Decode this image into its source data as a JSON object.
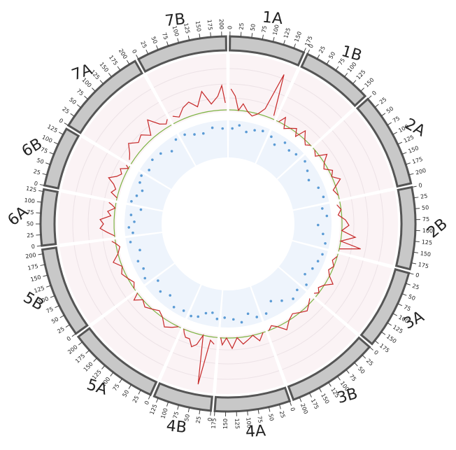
{
  "chart_data": {
    "type": "circos",
    "ideogram_color": "#c8c8c8",
    "peak_color": "#c62828",
    "threshold_color": "#7cb342",
    "dot_color": "#5b9bd5",
    "peak_ylim": [
      0,
      10
    ],
    "dot_ylim": [
      0,
      10
    ],
    "threshold": 2,
    "chromosomes": [
      {
        "name": "1A",
        "length": 175,
        "ticks": [
          0,
          25,
          50,
          75,
          100,
          125,
          150,
          175
        ],
        "peak_x": [
          5,
          20,
          35,
          50,
          70,
          90,
          110,
          130,
          150,
          168
        ],
        "peak_values": [
          5,
          4,
          2,
          3,
          2,
          1.5,
          2,
          3,
          8.5,
          2.5
        ],
        "dot_x": [
          15,
          45,
          80,
          115,
          150
        ],
        "dot_values": [
          8,
          9,
          7.5,
          8.5,
          9
        ]
      },
      {
        "name": "1B",
        "length": 165,
        "ticks": [
          0,
          25,
          50,
          75,
          100,
          125,
          150
        ],
        "peak_x": [
          10,
          25,
          40,
          60,
          80,
          95,
          110,
          130,
          145,
          160
        ],
        "peak_values": [
          2,
          3,
          1.5,
          2,
          2.5,
          1.5,
          3,
          2,
          1.5,
          2
        ],
        "dot_x": [
          10,
          40,
          75,
          110,
          145
        ],
        "dot_values": [
          8.5,
          7,
          9,
          8,
          8.5
        ]
      },
      {
        "name": "2A",
        "length": 220,
        "ticks": [
          0,
          25,
          50,
          75,
          100,
          125,
          150,
          175,
          200
        ],
        "peak_x": [
          10,
          30,
          50,
          70,
          90,
          110,
          130,
          150,
          180,
          205
        ],
        "peak_values": [
          2,
          1.5,
          3,
          2,
          1.5,
          2.5,
          2,
          3,
          1.5,
          2
        ],
        "dot_x": [
          20,
          60,
          100,
          150,
          195
        ],
        "dot_values": [
          9,
          8,
          7,
          8.5,
          9
        ]
      },
      {
        "name": "2B",
        "length": 190,
        "ticks": [
          0,
          25,
          50,
          75,
          100,
          125,
          150,
          175
        ],
        "peak_x": [
          10,
          30,
          50,
          70,
          90,
          110,
          130,
          150,
          165,
          180
        ],
        "peak_values": [
          1.5,
          2,
          1.5,
          2.5,
          3,
          2,
          4,
          2,
          5,
          2
        ],
        "dot_x": [
          15,
          50,
          90,
          130,
          170
        ],
        "dot_values": [
          8,
          9,
          6.5,
          8,
          9
        ]
      },
      {
        "name": "3A",
        "length": 185,
        "ticks": [
          0,
          25,
          50,
          75,
          100,
          125,
          150,
          175
        ],
        "peak_x": [
          10,
          30,
          50,
          70,
          90,
          110,
          130,
          150,
          165,
          178
        ],
        "peak_values": [
          2,
          1.5,
          2,
          1.5,
          2,
          3,
          2,
          1.5,
          2,
          1.5
        ],
        "dot_x": [
          20,
          55,
          95,
          135,
          170
        ],
        "dot_values": [
          9,
          8.5,
          8,
          7,
          9
        ]
      },
      {
        "name": "3B",
        "length": 215,
        "ticks": [
          0,
          25,
          50,
          75,
          100,
          125,
          150,
          175,
          200
        ],
        "peak_x": [
          10,
          30,
          50,
          75,
          100,
          125,
          150,
          175,
          195,
          210
        ],
        "peak_values": [
          1.5,
          2,
          2.5,
          2,
          1.5,
          2,
          3,
          2,
          1.5,
          2
        ],
        "dot_x": [
          20,
          60,
          105,
          150,
          195
        ],
        "dot_values": [
          8,
          9,
          7.5,
          6,
          8.5
        ]
      },
      {
        "name": "4A",
        "length": 175,
        "ticks": [
          0,
          25,
          50,
          75,
          100,
          125,
          150,
          175
        ],
        "peak_x": [
          10,
          30,
          50,
          70,
          90,
          110,
          130,
          150,
          165,
          172
        ],
        "peak_values": [
          2,
          3,
          2,
          2.5,
          3,
          2,
          3.5,
          2,
          3,
          2
        ],
        "dot_x": [
          15,
          50,
          85,
          120,
          160
        ],
        "dot_values": [
          8.5,
          7,
          9,
          8,
          7.5
        ]
      },
      {
        "name": "4B",
        "length": 135,
        "ticks": [
          0,
          25,
          50,
          75,
          100,
          125
        ],
        "peak_x": [
          10,
          25,
          40,
          55,
          70,
          85,
          100,
          115,
          125,
          132
        ],
        "peak_values": [
          3,
          2.5,
          9,
          2,
          3.5,
          4,
          3,
          3,
          2.5,
          2
        ],
        "dot_x": [
          10,
          35,
          65,
          95,
          125
        ],
        "dot_values": [
          8,
          6.5,
          7,
          8.5,
          9
        ]
      },
      {
        "name": "5A",
        "length": 215,
        "ticks": [
          0,
          25,
          50,
          75,
          100,
          125,
          150,
          175,
          200
        ],
        "peak_x": [
          10,
          30,
          55,
          80,
          105,
          130,
          155,
          180,
          200,
          212
        ],
        "peak_values": [
          2,
          2.5,
          3,
          2,
          1.5,
          2,
          2.5,
          2,
          3,
          2
        ],
        "dot_x": [
          20,
          65,
          110,
          155,
          200
        ],
        "dot_values": [
          8.5,
          9,
          7,
          8,
          6.5
        ]
      },
      {
        "name": "5B",
        "length": 210,
        "ticks": [
          0,
          25,
          50,
          75,
          100,
          125,
          150,
          175,
          200
        ],
        "peak_x": [
          10,
          30,
          55,
          80,
          105,
          130,
          155,
          180,
          195,
          205
        ],
        "peak_values": [
          2,
          1.5,
          2,
          2.5,
          2,
          3,
          2,
          1.5,
          2,
          2.5
        ],
        "dot_x": [
          20,
          60,
          100,
          145,
          190
        ],
        "dot_values": [
          9,
          8,
          8.5,
          7,
          9
        ]
      },
      {
        "name": "6A",
        "length": 130,
        "ticks": [
          0,
          25,
          50,
          75,
          100,
          125
        ],
        "peak_x": [
          5,
          20,
          35,
          50,
          65,
          80,
          95,
          110,
          120,
          127
        ],
        "peak_values": [
          2,
          3,
          4,
          3.5,
          4,
          2.5,
          3,
          2,
          2.5,
          3
        ],
        "dot_x": [
          10,
          35,
          60,
          90,
          120
        ],
        "dot_values": [
          8,
          9,
          7.5,
          8.5,
          6
        ]
      },
      {
        "name": "6B",
        "length": 140,
        "ticks": [
          0,
          25,
          50,
          75,
          100,
          125
        ],
        "peak_x": [
          10,
          25,
          40,
          55,
          70,
          85,
          100,
          115,
          130,
          137
        ],
        "peak_values": [
          2,
          3,
          2.5,
          3,
          4,
          3,
          2.5,
          3,
          2,
          2.5
        ],
        "dot_x": [
          10,
          40,
          70,
          100,
          130
        ],
        "dot_values": [
          9,
          8,
          7,
          8.5,
          9
        ]
      },
      {
        "name": "7A",
        "length": 215,
        "ticks": [
          0,
          25,
          50,
          75,
          100,
          125,
          150,
          175,
          200
        ],
        "peak_x": [
          10,
          30,
          55,
          80,
          105,
          130,
          155,
          180,
          200,
          212
        ],
        "peak_values": [
          2.5,
          3,
          4,
          3,
          3.5,
          2.5,
          4.5,
          3,
          2.5,
          3
        ],
        "dot_x": [
          20,
          65,
          110,
          155,
          200
        ],
        "dot_values": [
          8,
          9,
          8.5,
          7,
          9
        ]
      },
      {
        "name": "7B",
        "length": 210,
        "ticks": [
          0,
          25,
          50,
          75,
          100,
          125,
          150,
          175,
          200
        ],
        "peak_x": [
          10,
          30,
          55,
          80,
          105,
          130,
          155,
          180,
          195,
          205
        ],
        "peak_values": [
          3,
          2.5,
          3.5,
          4,
          3,
          5,
          3,
          4,
          5.5,
          3
        ],
        "dot_x": [
          20,
          60,
          100,
          145,
          190
        ],
        "dot_values": [
          9,
          8,
          7.5,
          8.5,
          8
        ]
      }
    ]
  }
}
